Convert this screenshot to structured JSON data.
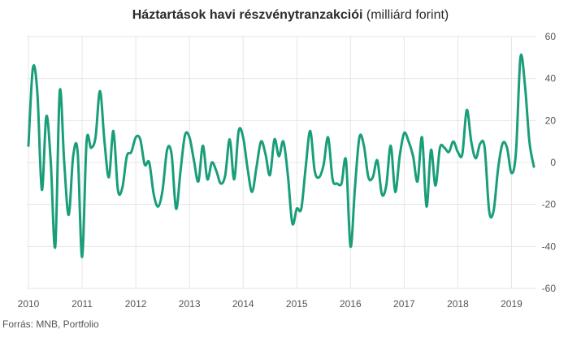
{
  "chart_data": {
    "type": "line",
    "title": "Háztartások havi részvénytranzakciói",
    "subtitle": "(milliárd forint)",
    "xlabel": "",
    "ylabel": "",
    "source": "Forrás: MNB, Portfolio",
    "ylim": [
      -60,
      60
    ],
    "yticks": [
      60,
      40,
      20,
      0,
      -20,
      -40,
      -60
    ],
    "xticks": [
      "2010",
      "2011",
      "2012",
      "2013",
      "2014",
      "2015",
      "2016",
      "2017",
      "2018",
      "2019"
    ],
    "grid": true,
    "legend": "none",
    "colors": {
      "line": "#1a9e7a",
      "grid": "#e6e6e6",
      "tick_text": "#555555"
    },
    "series": [
      {
        "values": [
          8,
          45,
          33,
          -13,
          22,
          0,
          -40,
          34,
          0,
          -25,
          3,
          5,
          -45,
          10,
          7,
          12,
          34,
          10,
          -7,
          15,
          -13,
          -12,
          3,
          5,
          12,
          11,
          -1,
          0,
          -15,
          -21,
          -13,
          6,
          4,
          -22,
          -4,
          13,
          12,
          1,
          -9,
          8,
          -8,
          0,
          -4,
          -10,
          -6,
          11,
          -8,
          15,
          12,
          -3,
          -14,
          -2,
          10,
          4,
          -6,
          11,
          3,
          10,
          -6,
          -29,
          -22,
          -22,
          -2,
          15,
          -4,
          -7,
          -1,
          12,
          -8,
          -10,
          -10,
          1,
          -40,
          -12,
          12,
          8,
          -7,
          -7,
          1,
          -15,
          -11,
          8,
          -14,
          3,
          14,
          10,
          3,
          -9,
          12,
          -21,
          6,
          -11,
          7,
          7,
          5,
          10,
          5,
          4,
          25,
          10,
          2,
          9,
          7,
          -23,
          -23,
          -3,
          9,
          7,
          -5,
          5,
          50,
          37,
          10,
          -2
        ]
      }
    ]
  }
}
